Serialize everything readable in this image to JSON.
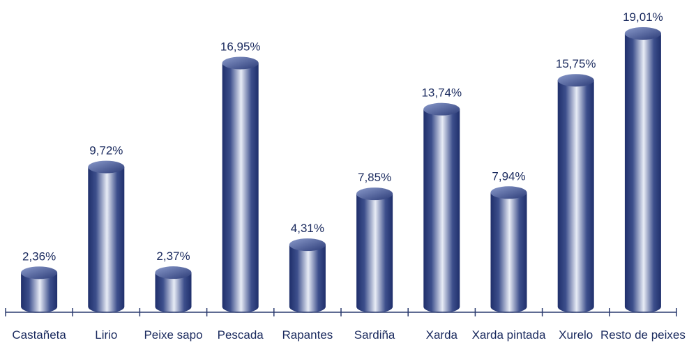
{
  "chart_data": {
    "type": "bar",
    "style": "3d-cylinder",
    "categories": [
      "Castañeta",
      "Lirio",
      "Peixe sapo",
      "Pescada",
      "Rapantes",
      "Sardiña",
      "Xarda",
      "Xarda pintada",
      "Xurelo",
      "Resto de peixes"
    ],
    "values": [
      2.36,
      9.72,
      2.37,
      16.95,
      4.31,
      7.85,
      13.74,
      7.94,
      15.75,
      19.01
    ],
    "value_labels": [
      "2,36%",
      "9,72%",
      "2,37%",
      "16,95%",
      "4,31%",
      "7,85%",
      "13,74%",
      "7,94%",
      "15,75%",
      "19,01%"
    ],
    "title": "",
    "xlabel": "",
    "ylabel": "",
    "ylim": [
      0,
      19.01
    ],
    "grid": false,
    "legend": "none",
    "colors": {
      "bar_dark": "#1f2f6b",
      "bar_mid": "#5a6ea8",
      "bar_light": "#e8ecf6",
      "text": "#1a2a5e",
      "axis": "#2a3a6e"
    }
  }
}
